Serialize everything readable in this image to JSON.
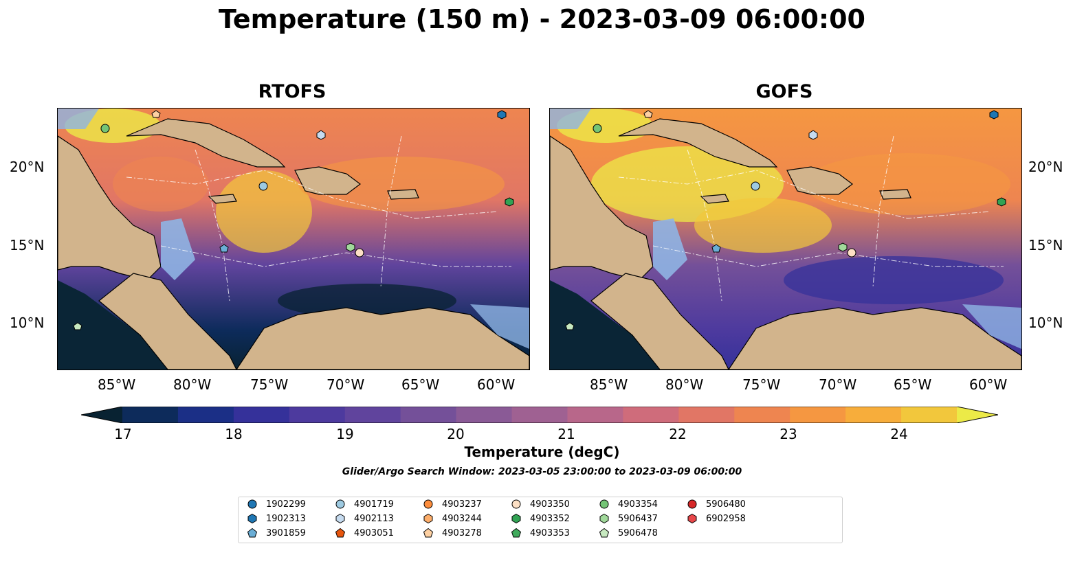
{
  "title": "Temperature (150 m) - 2023-03-09 06:00:00",
  "panels": [
    {
      "id": "rtofs",
      "title": "RTOFS"
    },
    {
      "id": "gofs",
      "title": "GOFS"
    }
  ],
  "x_ticks": [
    "85°W",
    "80°W",
    "75°W",
    "70°W",
    "65°W",
    "60°W"
  ],
  "y_ticks": [
    "20°N",
    "15°N",
    "10°N"
  ],
  "colorbar": {
    "ticks": [
      "17",
      "18",
      "19",
      "20",
      "21",
      "22",
      "23",
      "24"
    ],
    "label": "Temperature (degC)",
    "colors": [
      "#082232",
      "#0d2b5b",
      "#1b2f86",
      "#35319a",
      "#4d3a9e",
      "#60449d",
      "#745099",
      "#8a5a96",
      "#9f6192",
      "#b8678a",
      "#cf6c7b",
      "#e17665",
      "#ee8550",
      "#f59741",
      "#f7ad3b",
      "#f2c73c",
      "#ecea47"
    ]
  },
  "search_window": "Glider/Argo Search Window: 2023-03-05 23:00:00 to 2023-03-09 06:00:00",
  "legend": [
    {
      "label": "1902299",
      "shape": "circle",
      "color": "#1f77b4"
    },
    {
      "label": "1902313",
      "shape": "hexagon",
      "color": "#1f77b4"
    },
    {
      "label": "3901859",
      "shape": "pentagon",
      "color": "#6baed6"
    },
    {
      "label": "4901719",
      "shape": "circle",
      "color": "#9ecae1"
    },
    {
      "label": "4902113",
      "shape": "hexagon",
      "color": "#c6dbef"
    },
    {
      "label": "4903051",
      "shape": "pentagon",
      "color": "#e6550d"
    },
    {
      "label": "4903237",
      "shape": "circle",
      "color": "#fd8d3c"
    },
    {
      "label": "4903244",
      "shape": "hexagon",
      "color": "#fdae6b"
    },
    {
      "label": "4903278",
      "shape": "pentagon",
      "color": "#fdd0a2"
    },
    {
      "label": "4903350",
      "shape": "circle",
      "color": "#fde0c5"
    },
    {
      "label": "4903352",
      "shape": "hexagon",
      "color": "#31a354"
    },
    {
      "label": "4903353",
      "shape": "pentagon",
      "color": "#41ab5d"
    },
    {
      "label": "4903354",
      "shape": "circle",
      "color": "#74c476"
    },
    {
      "label": "5906437",
      "shape": "hexagon",
      "color": "#a1d99b"
    },
    {
      "label": "5906478",
      "shape": "pentagon",
      "color": "#c7e9c0"
    },
    {
      "label": "5906480",
      "shape": "circle",
      "color": "#d62728"
    },
    {
      "label": "6902958",
      "shape": "hexagon",
      "color": "#e8474a"
    }
  ],
  "colors": {
    "land": "#d2b48c",
    "shelf": "#8fb4e3",
    "deep": "#0a2536",
    "coast": "#000000"
  }
}
